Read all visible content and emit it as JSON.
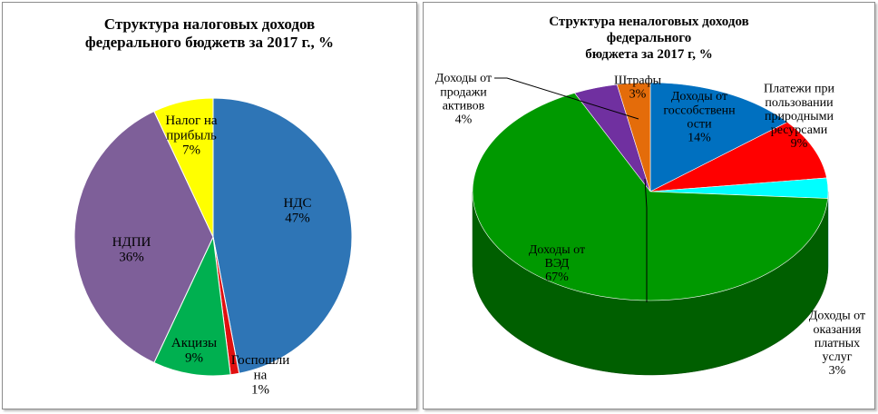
{
  "chart_data": [
    {
      "type": "pie",
      "title_lines": [
        "Структура  налоговых доходов",
        "федерального бюджетв за 2017 г., %"
      ],
      "slices": [
        {
          "label_lines": [
            "НДС",
            "47%"
          ],
          "value": 47,
          "color": "#2E75B6"
        },
        {
          "label_lines": [
            "Госпошли",
            "на",
            "1%"
          ],
          "value": 1,
          "color": "#E01010"
        },
        {
          "label_lines": [
            "Акцизы",
            "9%"
          ],
          "value": 9,
          "color": "#00B050"
        },
        {
          "label_lines": [
            "НДПИ",
            "36%"
          ],
          "value": 36,
          "color": "#7E5F99"
        },
        {
          "label_lines": [
            "Налог на",
            "прибыль",
            "7%"
          ],
          "value": 7,
          "color": "#FFFF00"
        }
      ]
    },
    {
      "type": "pie",
      "variant": "3d",
      "title_lines": [
        "Структура  неналоговых доходов федерального",
        "бюджета за 2017 г, %"
      ],
      "slices": [
        {
          "label_lines": [
            "Доходы от",
            "госсобственн",
            "ости",
            "14%"
          ],
          "value": 14,
          "color": "#0070C0"
        },
        {
          "label_lines": [
            "Платежи при",
            "пользовании",
            "природными",
            "ресурсами",
            "9%"
          ],
          "value": 9,
          "color": "#FF0000"
        },
        {
          "label_lines": [
            "Доходы от",
            "оказания",
            "платных",
            "услуг",
            "3%"
          ],
          "value": 3,
          "color": "#00FFFF"
        },
        {
          "label_lines": [
            "Доходы от",
            "ВЭД",
            "67%"
          ],
          "value": 67,
          "color": "#009900"
        },
        {
          "label_lines": [
            "Доходы от",
            "продажи",
            "активов",
            "4%"
          ],
          "value": 4,
          "color": "#7030A0"
        },
        {
          "label_lines": [
            "Штрафы",
            "3%"
          ],
          "value": 3,
          "color": "#E46C0A"
        }
      ]
    }
  ]
}
